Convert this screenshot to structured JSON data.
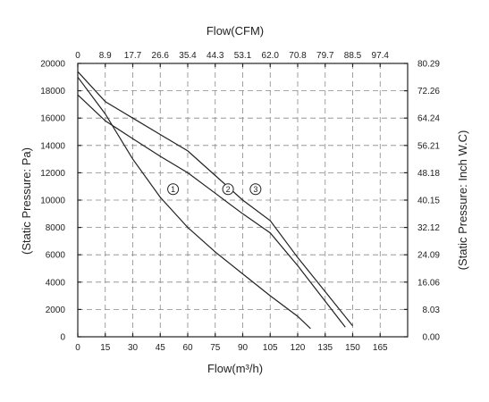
{
  "chart_data": {
    "type": "line",
    "xlabel_bottom": "Flow(m³/h)",
    "xlabel_top": "Flow(CFM)",
    "ylabel_left": "(Static Pressure: Pa)",
    "ylabel_right": "(Static Pressure: Inch W.C)",
    "xlim": [
      0,
      180
    ],
    "ylim": [
      0,
      20000
    ],
    "x_ticks": [
      0,
      15,
      30,
      45,
      60,
      75,
      90,
      105,
      120,
      135,
      150,
      165
    ],
    "x_tick_labels": [
      "0",
      "15",
      "30",
      "45",
      "60",
      "75",
      "90",
      "105",
      "120",
      "135",
      "150",
      "165"
    ],
    "y_ticks": [
      0,
      2000,
      4000,
      6000,
      8000,
      10000,
      12000,
      14000,
      16000,
      18000,
      20000
    ],
    "y_tick_labels": [
      "0",
      "2000",
      "4000",
      "6000",
      "8000",
      "10000",
      "12000",
      "14000",
      "16000",
      "18000",
      "20000"
    ],
    "top_tick_labels": [
      "0",
      "8.9",
      "17.7",
      "26.6",
      "35.4",
      "44.3",
      "53.1",
      "62.0",
      "70.8",
      "79.7",
      "88.5",
      "97.4"
    ],
    "right_tick_labels": [
      "0.00",
      "8.03",
      "16.06",
      "24.09",
      "32.12",
      "40.15",
      "48.18",
      "56.21",
      "64.24",
      "72.26",
      "80.29"
    ],
    "grid": true,
    "series": [
      {
        "name": "①",
        "label_at": [
          52,
          10800
        ],
        "points": [
          [
            0,
            19000
          ],
          [
            15,
            16300
          ],
          [
            30,
            13000
          ],
          [
            45,
            10200
          ],
          [
            60,
            8000
          ],
          [
            75,
            6200
          ],
          [
            90,
            4600
          ],
          [
            105,
            3000
          ],
          [
            120,
            1500
          ],
          [
            127,
            600
          ]
        ]
      },
      {
        "name": "②",
        "label_at": [
          82,
          10800
        ],
        "points": [
          [
            0,
            17700
          ],
          [
            15,
            15800
          ],
          [
            30,
            14500
          ],
          [
            45,
            13200
          ],
          [
            60,
            12000
          ],
          [
            75,
            10500
          ],
          [
            90,
            9000
          ],
          [
            105,
            7600
          ],
          [
            120,
            5200
          ],
          [
            135,
            2600
          ],
          [
            146,
            700
          ]
        ]
      },
      {
        "name": "③",
        "label_at": [
          97,
          10800
        ],
        "points": [
          [
            0,
            19400
          ],
          [
            15,
            17200
          ],
          [
            30,
            16000
          ],
          [
            45,
            14800
          ],
          [
            60,
            13600
          ],
          [
            75,
            11800
          ],
          [
            90,
            10000
          ],
          [
            105,
            8500
          ],
          [
            120,
            5800
          ],
          [
            135,
            3300
          ],
          [
            150,
            800
          ]
        ]
      }
    ]
  }
}
